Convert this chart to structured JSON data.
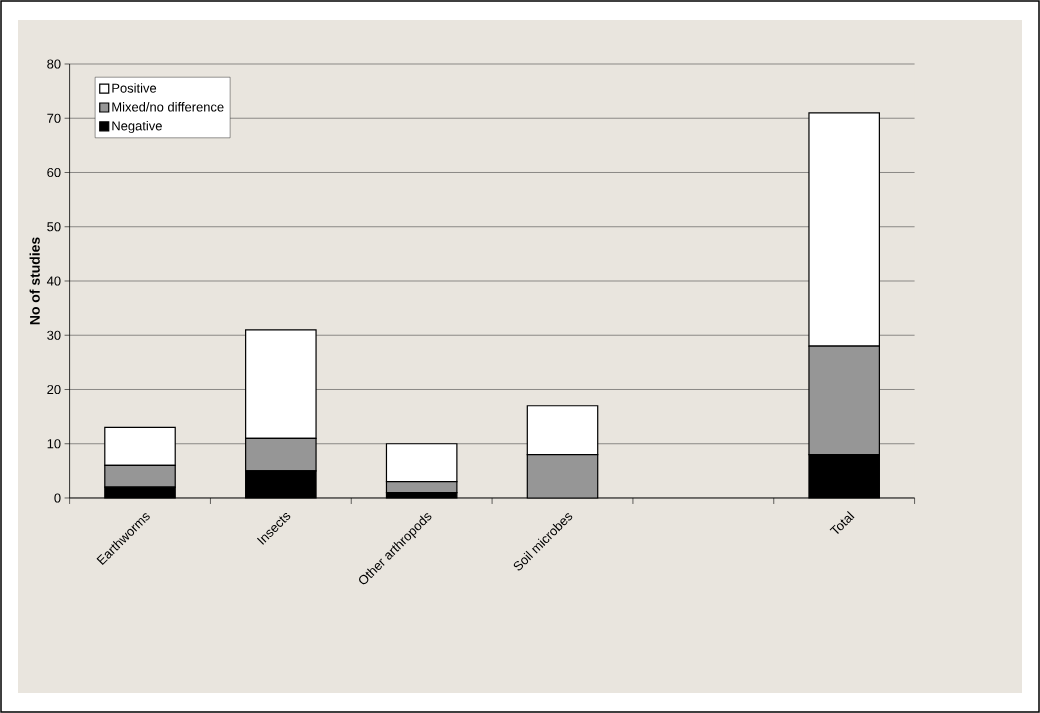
{
  "chart_data": {
    "type": "bar",
    "stacked": true,
    "ylabel": "No of studies",
    "categories": [
      "Earthworms",
      "Insects",
      "Other arthropods",
      "Soil microbes",
      null,
      "Total"
    ],
    "series": [
      {
        "name": "Negative",
        "color": "#000000",
        "values": [
          2,
          5,
          1,
          0,
          null,
          8
        ]
      },
      {
        "name": "Mixed/no difference",
        "color": "#969696",
        "values": [
          4,
          6,
          2,
          8,
          null,
          20
        ]
      },
      {
        "name": "Positive",
        "color": "#ffffff",
        "values": [
          7,
          20,
          7,
          9,
          null,
          43
        ]
      }
    ],
    "ylim": [
      0,
      80
    ],
    "yticks": [
      0,
      10,
      20,
      30,
      40,
      50,
      60,
      70,
      80
    ],
    "grid": "y",
    "legend": "top left"
  }
}
